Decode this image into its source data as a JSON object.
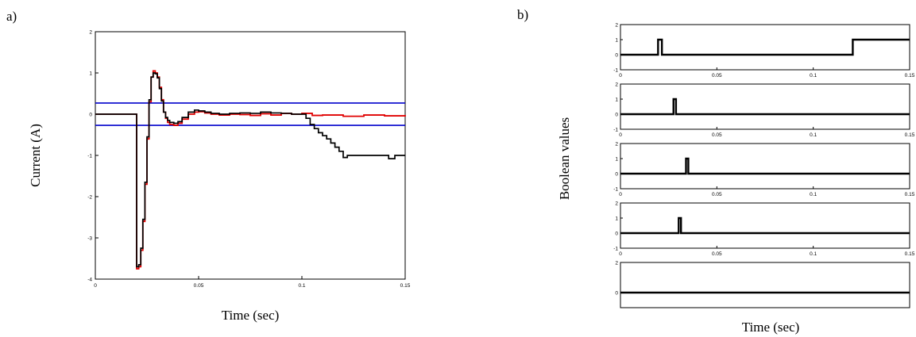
{
  "panel_labels": {
    "a": "a)",
    "b": "b)"
  },
  "chart_data": [
    {
      "type": "line",
      "panel": "a)",
      "xlabel": "Time (sec)",
      "ylabel": "Current (A)",
      "xlim": [
        0,
        0.15
      ],
      "ylim": [
        -4,
        2
      ],
      "xticks": [
        0,
        0.05,
        0.1,
        0.15
      ],
      "xtick_labels": [
        "0",
        "0.05",
        "0.1",
        "0.15"
      ],
      "yticks": [
        -4,
        -3,
        -2,
        -1,
        0,
        1,
        2
      ],
      "ytick_labels": [
        "-4",
        "-3",
        "-2",
        "-1",
        "0",
        "1",
        "2"
      ],
      "hlines": [
        {
          "y": 0.27,
          "color": "#0000cc"
        },
        {
          "y": -0.27,
          "color": "#0000cc"
        }
      ],
      "series": [
        {
          "color": "#e00000",
          "x": [
            0,
            0.02,
            0.02,
            0.021,
            0.022,
            0.023,
            0.024,
            0.025,
            0.026,
            0.027,
            0.028,
            0.029,
            0.03,
            0.031,
            0.032,
            0.033,
            0.034,
            0.035,
            0.036,
            0.038,
            0.04,
            0.042,
            0.045,
            0.048,
            0.05,
            0.053,
            0.056,
            0.06,
            0.065,
            0.07,
            0.075,
            0.08,
            0.085,
            0.09,
            0.095,
            0.1,
            0.105,
            0.11,
            0.12,
            0.13,
            0.14,
            0.15
          ],
          "y": [
            0,
            0,
            -3.75,
            -3.7,
            -3.3,
            -2.6,
            -1.7,
            -0.6,
            0.3,
            0.9,
            1.05,
            1.0,
            0.9,
            0.65,
            0.35,
            0.05,
            -0.1,
            -0.2,
            -0.25,
            -0.27,
            -0.22,
            -0.12,
            0.0,
            0.05,
            0.06,
            0.03,
            0.0,
            -0.02,
            0.0,
            -0.01,
            -0.03,
            0.01,
            -0.02,
            0.02,
            0.0,
            0.02,
            -0.03,
            -0.02,
            -0.05,
            -0.02,
            -0.04,
            -0.02
          ]
        },
        {
          "color": "#000000",
          "x": [
            0,
            0.02,
            0.02,
            0.021,
            0.022,
            0.023,
            0.024,
            0.025,
            0.026,
            0.027,
            0.028,
            0.029,
            0.03,
            0.031,
            0.032,
            0.033,
            0.034,
            0.035,
            0.036,
            0.038,
            0.04,
            0.042,
            0.045,
            0.048,
            0.05,
            0.053,
            0.056,
            0.06,
            0.065,
            0.07,
            0.075,
            0.08,
            0.085,
            0.09,
            0.095,
            0.1,
            0.102,
            0.104,
            0.106,
            0.108,
            0.11,
            0.112,
            0.114,
            0.116,
            0.118,
            0.12,
            0.122,
            0.125,
            0.13,
            0.135,
            0.14,
            0.142,
            0.145,
            0.15
          ],
          "y": [
            0,
            0,
            -3.7,
            -3.65,
            -3.25,
            -2.55,
            -1.65,
            -0.55,
            0.35,
            0.9,
            1.0,
            0.98,
            0.88,
            0.62,
            0.32,
            0.05,
            -0.08,
            -0.15,
            -0.2,
            -0.22,
            -0.18,
            -0.08,
            0.05,
            0.1,
            0.08,
            0.05,
            0.02,
            0.0,
            0.02,
            0.03,
            0.02,
            0.05,
            0.03,
            0.02,
            0.0,
            0.0,
            -0.1,
            -0.25,
            -0.35,
            -0.45,
            -0.52,
            -0.6,
            -0.7,
            -0.8,
            -0.9,
            -1.05,
            -1.0,
            -1.0,
            -1.0,
            -1.0,
            -1.0,
            -1.08,
            -1.0,
            -1.0
          ]
        }
      ]
    },
    {
      "type": "line",
      "panel": "b)",
      "xlabel": "Time (sec)",
      "ylabel": "Boolean values",
      "xlim": [
        0,
        0.15
      ],
      "xticks": [
        0,
        0.05,
        0.1,
        0.15
      ],
      "xtick_labels": [
        "0",
        "0.05",
        "0.1",
        "0.15"
      ],
      "subplots": [
        {
          "ylim": [
            -1,
            2
          ],
          "yticks": [
            -1,
            0,
            1,
            2
          ],
          "ytick_labels": [
            "-1",
            "0",
            "1",
            "2"
          ],
          "x": [
            0,
            0.0195,
            0.0195,
            0.0215,
            0.0215,
            0.1205,
            0.1205,
            0.15
          ],
          "y": [
            0,
            0,
            1,
            1,
            0,
            0,
            1,
            1
          ]
        },
        {
          "ylim": [
            -1,
            2
          ],
          "yticks": [
            -1,
            0,
            1,
            2
          ],
          "ytick_labels": [
            "-1",
            "0",
            "1",
            "2"
          ],
          "x": [
            0,
            0.0275,
            0.0275,
            0.0288,
            0.0288,
            0.15
          ],
          "y": [
            0,
            0,
            1,
            1,
            0,
            0
          ]
        },
        {
          "ylim": [
            -1,
            2
          ],
          "yticks": [
            -1,
            0,
            1,
            2
          ],
          "ytick_labels": [
            "-1",
            "0",
            "1",
            "2"
          ],
          "x": [
            0,
            0.034,
            0.034,
            0.0352,
            0.0352,
            0.15
          ],
          "y": [
            0,
            0,
            1,
            1,
            0,
            0
          ]
        },
        {
          "ylim": [
            -1,
            2
          ],
          "yticks": [
            -1,
            0,
            1,
            2
          ],
          "ytick_labels": [
            "-1",
            "0",
            "1",
            "2"
          ],
          "x": [
            0,
            0.0302,
            0.0302,
            0.0314,
            0.0314,
            0.15
          ],
          "y": [
            0,
            0,
            1,
            1,
            0,
            0
          ]
        },
        {
          "ylim": [
            -1,
            2
          ],
          "yticks": [
            0,
            2
          ],
          "ytick_labels": [
            "0",
            "2"
          ],
          "x": [
            0,
            0.15
          ],
          "y": [
            0,
            0
          ]
        }
      ]
    }
  ]
}
